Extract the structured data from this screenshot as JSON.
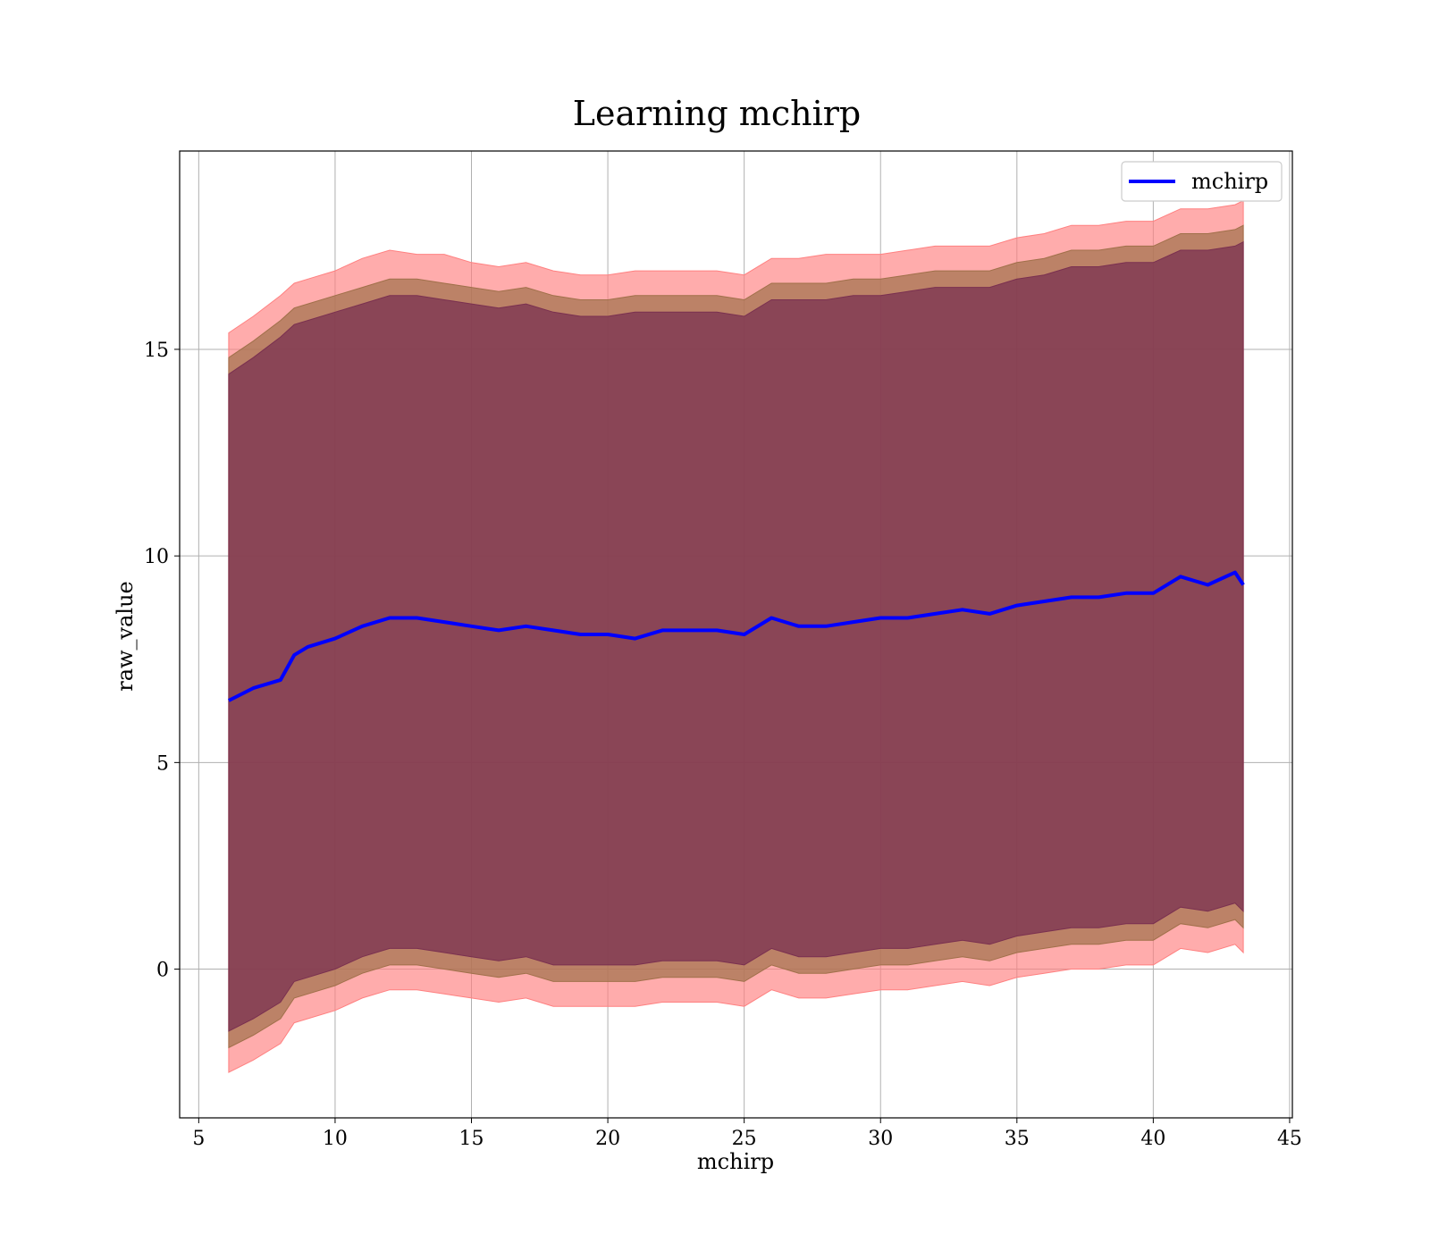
{
  "chart_data": {
    "type": "area",
    "title": "Learning mchirp",
    "xlabel": "mchirp",
    "ylabel": "raw_value",
    "xlim": [
      4.3,
      45.1
    ],
    "ylim": [
      -3.6,
      19.8
    ],
    "xticks": [
      5,
      10,
      15,
      20,
      25,
      30,
      35,
      40,
      45
    ],
    "yticks": [
      0,
      5,
      10,
      15
    ],
    "grid": true,
    "legend": {
      "location": "upper right",
      "entries": [
        "mchirp"
      ]
    },
    "colors": {
      "line": "#0000ff",
      "band_outer": "#ff8080",
      "band_middle": "#a0704a",
      "band_inner": "#7a3050"
    },
    "x": [
      6.1,
      7,
      8,
      8.5,
      9,
      10,
      11,
      12,
      13,
      14,
      15,
      16,
      17,
      18,
      19,
      20,
      21,
      22,
      23,
      24,
      25,
      26,
      27,
      28,
      29,
      30,
      31,
      32,
      33,
      34,
      35,
      36,
      37,
      38,
      39,
      40,
      41,
      42,
      43,
      43.3
    ],
    "series": [
      {
        "name": "mchirp",
        "values": [
          6.5,
          6.8,
          7.0,
          7.6,
          7.8,
          8.0,
          8.3,
          8.5,
          8.5,
          8.4,
          8.3,
          8.2,
          8.3,
          8.2,
          8.1,
          8.1,
          8.0,
          8.2,
          8.2,
          8.2,
          8.1,
          8.5,
          8.3,
          8.3,
          8.4,
          8.5,
          8.5,
          8.6,
          8.7,
          8.6,
          8.8,
          8.9,
          9.0,
          9.0,
          9.1,
          9.1,
          9.5,
          9.3,
          9.6,
          9.3
        ]
      }
    ],
    "bands": [
      {
        "level": "outer",
        "upper": [
          15.4,
          15.8,
          16.3,
          16.6,
          16.7,
          16.9,
          17.2,
          17.4,
          17.3,
          17.3,
          17.1,
          17.0,
          17.1,
          16.9,
          16.8,
          16.8,
          16.9,
          16.9,
          16.9,
          16.9,
          16.8,
          17.2,
          17.2,
          17.3,
          17.3,
          17.3,
          17.4,
          17.5,
          17.5,
          17.5,
          17.7,
          17.8,
          18.0,
          18.0,
          18.1,
          18.1,
          18.4,
          18.4,
          18.5,
          18.6
        ],
        "lower": [
          -2.5,
          -2.2,
          -1.8,
          -1.3,
          -1.2,
          -1.0,
          -0.7,
          -0.5,
          -0.5,
          -0.6,
          -0.7,
          -0.8,
          -0.7,
          -0.9,
          -0.9,
          -0.9,
          -0.9,
          -0.8,
          -0.8,
          -0.8,
          -0.9,
          -0.5,
          -0.7,
          -0.7,
          -0.6,
          -0.5,
          -0.5,
          -0.4,
          -0.3,
          -0.4,
          -0.2,
          -0.1,
          0.0,
          0.0,
          0.1,
          0.1,
          0.5,
          0.4,
          0.6,
          0.4
        ]
      },
      {
        "level": "middle",
        "upper": [
          14.8,
          15.2,
          15.7,
          16.0,
          16.1,
          16.3,
          16.5,
          16.7,
          16.7,
          16.6,
          16.5,
          16.4,
          16.5,
          16.3,
          16.2,
          16.2,
          16.3,
          16.3,
          16.3,
          16.3,
          16.2,
          16.6,
          16.6,
          16.6,
          16.7,
          16.7,
          16.8,
          16.9,
          16.9,
          16.9,
          17.1,
          17.2,
          17.4,
          17.4,
          17.5,
          17.5,
          17.8,
          17.8,
          17.9,
          18.0
        ],
        "lower": [
          -1.9,
          -1.6,
          -1.2,
          -0.7,
          -0.6,
          -0.4,
          -0.1,
          0.1,
          0.1,
          0.0,
          -0.1,
          -0.2,
          -0.1,
          -0.3,
          -0.3,
          -0.3,
          -0.3,
          -0.2,
          -0.2,
          -0.2,
          -0.3,
          0.1,
          -0.1,
          -0.1,
          0.0,
          0.1,
          0.1,
          0.2,
          0.3,
          0.2,
          0.4,
          0.5,
          0.6,
          0.6,
          0.7,
          0.7,
          1.1,
          1.0,
          1.2,
          1.0
        ]
      },
      {
        "level": "inner",
        "upper": [
          14.4,
          14.8,
          15.3,
          15.6,
          15.7,
          15.9,
          16.1,
          16.3,
          16.3,
          16.2,
          16.1,
          16.0,
          16.1,
          15.9,
          15.8,
          15.8,
          15.9,
          15.9,
          15.9,
          15.9,
          15.8,
          16.2,
          16.2,
          16.2,
          16.3,
          16.3,
          16.4,
          16.5,
          16.5,
          16.5,
          16.7,
          16.8,
          17.0,
          17.0,
          17.1,
          17.1,
          17.4,
          17.4,
          17.5,
          17.6
        ],
        "lower": [
          -1.5,
          -1.2,
          -0.8,
          -0.3,
          -0.2,
          0.0,
          0.3,
          0.5,
          0.5,
          0.4,
          0.3,
          0.2,
          0.3,
          0.1,
          0.1,
          0.1,
          0.1,
          0.2,
          0.2,
          0.2,
          0.1,
          0.5,
          0.3,
          0.3,
          0.4,
          0.5,
          0.5,
          0.6,
          0.7,
          0.6,
          0.8,
          0.9,
          1.0,
          1.0,
          1.1,
          1.1,
          1.5,
          1.4,
          1.6,
          1.4
        ]
      }
    ]
  }
}
